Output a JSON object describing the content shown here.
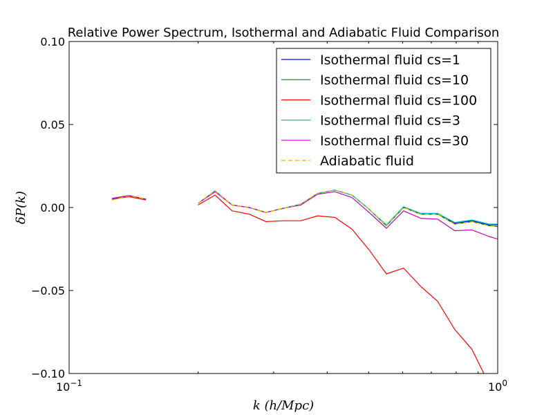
{
  "chart_data": {
    "type": "line",
    "title": "Relative Power Spectrum, Isothermal and Adiabatic Fluid Comparison",
    "xlabel": "k (h/Mpc)",
    "ylabel": "δP(k)",
    "xscale": "log",
    "xlim": [
      0.1,
      1.0
    ],
    "ylim": [
      -0.1,
      0.1
    ],
    "xticks": [
      {
        "value": 0.1,
        "base": "10",
        "exp": "−1"
      },
      {
        "value": 1.0,
        "base": "10",
        "exp": "0"
      }
    ],
    "yticks": [
      {
        "value": 0.1,
        "label": "0.10"
      },
      {
        "value": 0.05,
        "label": "0.05"
      },
      {
        "value": 0.0,
        "label": "0.00"
      },
      {
        "value": -0.05,
        "label": "−0.05"
      },
      {
        "value": -0.1,
        "label": "−0.10"
      }
    ],
    "legend_position": "top-right",
    "x": [
      0.126,
      0.138,
      0.151,
      0.182,
      0.2,
      0.219,
      0.24,
      0.263,
      0.288,
      0.316,
      0.347,
      0.38,
      0.417,
      0.457,
      0.501,
      0.55,
      0.603,
      0.661,
      0.724,
      0.794,
      0.871,
      0.955,
      1.0
    ],
    "series": [
      {
        "name": "Isothermal fluid cs=1",
        "color": "#0000ff",
        "dash": false,
        "values": [
          0.0055,
          0.0072,
          0.005,
          null,
          0.0025,
          0.01,
          0.0015,
          0.0,
          -0.003,
          -0.0005,
          0.002,
          0.0085,
          0.0105,
          0.0075,
          -0.001,
          -0.011,
          0.0,
          -0.004,
          -0.004,
          -0.0095,
          -0.008,
          -0.0105,
          -0.0105
        ]
      },
      {
        "name": "Isothermal fluid cs=10",
        "color": "#008000",
        "dash": false,
        "values": [
          0.0055,
          0.0072,
          0.005,
          null,
          0.0025,
          0.01,
          0.0015,
          0.0,
          -0.003,
          -0.0005,
          0.002,
          0.0085,
          0.0105,
          0.0075,
          -0.001,
          -0.011,
          0.0,
          -0.004,
          -0.004,
          -0.01,
          -0.0085,
          -0.011,
          -0.0115
        ]
      },
      {
        "name": "Isothermal fluid cs=100",
        "color": "#ff0000",
        "dash": false,
        "values": [
          0.005,
          0.0065,
          0.0045,
          null,
          0.0015,
          0.0075,
          -0.002,
          -0.004,
          -0.0085,
          -0.008,
          -0.008,
          -0.005,
          -0.006,
          -0.013,
          -0.0255,
          -0.04,
          -0.0365,
          -0.0475,
          -0.0565,
          -0.0735,
          -0.0855,
          -0.1065,
          -0.118
        ]
      },
      {
        "name": "Isothermal fluid cs=3",
        "color": "#00bfbf",
        "dash": false,
        "values": [
          0.0055,
          0.0072,
          0.005,
          null,
          0.0025,
          0.01,
          0.0015,
          0.0,
          -0.003,
          -0.0005,
          0.002,
          0.0085,
          0.0105,
          0.0075,
          -0.001,
          -0.0105,
          0.0005,
          -0.0035,
          -0.0035,
          -0.009,
          -0.0075,
          -0.01,
          -0.01
        ]
      },
      {
        "name": "Isothermal fluid cs=30",
        "color": "#bf00bf",
        "dash": false,
        "values": [
          0.0055,
          0.0072,
          0.005,
          null,
          0.0025,
          0.0095,
          0.0015,
          0.0,
          -0.003,
          -0.0005,
          0.0015,
          0.008,
          0.0095,
          0.006,
          -0.003,
          -0.0125,
          -0.002,
          -0.0065,
          -0.007,
          -0.014,
          -0.0135,
          -0.0175,
          -0.019
        ]
      },
      {
        "name": "Adiabatic fluid",
        "color": "#e6b800",
        "dash": true,
        "values": [
          0.0045,
          0.007,
          0.005,
          null,
          0.0025,
          0.01,
          0.0015,
          0.0,
          -0.003,
          -0.0005,
          0.002,
          0.0085,
          0.0105,
          0.0075,
          -0.001,
          -0.011,
          0.0,
          -0.004,
          -0.004,
          -0.01,
          -0.0085,
          -0.011,
          -0.0115
        ]
      }
    ]
  }
}
